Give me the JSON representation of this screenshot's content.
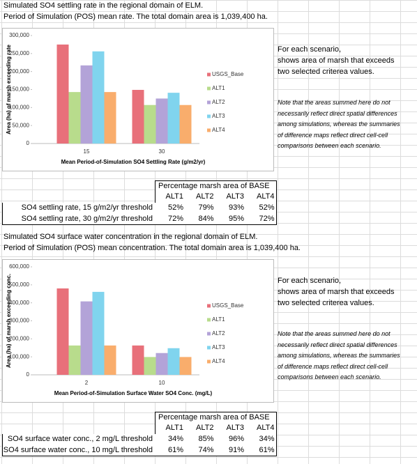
{
  "headers": [
    [
      "Simulated SO4 settling rate in the regional domain of ELM.",
      "Period of Simulation (POS) mean rate. The total domain area is 1,039,400 ha."
    ],
    [
      "Simulated SO4 surface water concentration in the regional domain of ELM.",
      "Period of Simulation (POS) mean concentration. The total domain area is 1,039,400 ha."
    ]
  ],
  "notes": [
    {
      "summary": [
        "For each scenario,",
        "shows area of marsh that exceeds",
        "two selected criterea values."
      ],
      "caveat": [
        "Note that the areas summed here do not",
        "necessarily reflect direct spatial differences",
        "among simulations, whereas the summaries",
        "of difference maps reflect direct cell-cell",
        "comparisons between each scenario."
      ]
    },
    {
      "summary": [
        "For each scenario,",
        "shows area of marsh that exceeds",
        "two selected criterea values."
      ],
      "caveat": [
        "Note that the areas summed here do not",
        "necessarily reflect direct spatial differences",
        "among simulations, whereas the summaries",
        "of difference maps reflect direct cell-cell",
        "comparisons between each scenario."
      ]
    }
  ],
  "tables": [
    {
      "title": "Percentage marsh area of BASE",
      "columns": [
        "ALT1",
        "ALT2",
        "ALT3",
        "ALT4"
      ],
      "rows": [
        {
          "label": "SO4 settling rate, 15 g/m2/yr threshold",
          "cells": [
            "52%",
            "79%",
            "93%",
            "52%"
          ]
        },
        {
          "label": "SO4 settling rate, 30 g/m2/yr threshold",
          "cells": [
            "72%",
            "84%",
            "95%",
            "72%"
          ]
        }
      ]
    },
    {
      "title": "Percentage marsh area of BASE",
      "columns": [
        "ALT1",
        "ALT2",
        "ALT3",
        "ALT4"
      ],
      "rows": [
        {
          "label": "SO4 surface water conc., 2 mg/L threshold",
          "cells": [
            "34%",
            "85%",
            "96%",
            "34%"
          ]
        },
        {
          "label": "SO4 surface water conc., 10 mg/L threshold",
          "cells": [
            "61%",
            "74%",
            "91%",
            "61%"
          ]
        }
      ]
    }
  ],
  "chart_data": [
    {
      "type": "bar",
      "xlabel": "Mean Period-of-Simulation SO4 Settling Rate (g/m2/yr)",
      "ylabel": "Area (ha) of marsh exceeding rate",
      "categories": [
        "15",
        "30"
      ],
      "series": [
        {
          "name": "USGS_Base",
          "color": "#e8707a",
          "values": [
            275000,
            149000
          ]
        },
        {
          "name": "ALT1",
          "color": "#b8dc8c",
          "values": [
            143000,
            107000
          ]
        },
        {
          "name": "ALT2",
          "color": "#b3a3d8",
          "values": [
            217000,
            125000
          ]
        },
        {
          "name": "ALT3",
          "color": "#80d4ee",
          "values": [
            256000,
            141000
          ]
        },
        {
          "name": "ALT4",
          "color": "#f9ad6c",
          "values": [
            143000,
            107000
          ]
        }
      ],
      "ylim": [
        0,
        300000
      ],
      "yticks": [
        0,
        {
          "value": 50000,
          "label": "50,000"
        },
        {
          "value": 100000,
          "label": "100,000"
        },
        {
          "value": 150000,
          "label": "150,000"
        },
        {
          "value": 200000,
          "label": "200,000"
        },
        {
          "value": 250000,
          "label": "250,000"
        },
        {
          "value": 300000,
          "label": "300,000"
        }
      ],
      "grid": false,
      "legend": "right"
    },
    {
      "type": "bar",
      "xlabel": "Mean Period-of-Simulation Surface Water SO4 Conc. (mg/L)",
      "ylabel": "Area (ha) of marsh exceeding conc.",
      "categories": [
        "2",
        "10"
      ],
      "series": [
        {
          "name": "USGS_Base",
          "color": "#e8707a",
          "values": [
            480000,
            163000
          ]
        },
        {
          "name": "ALT1",
          "color": "#b8dc8c",
          "values": [
            163000,
            99000
          ]
        },
        {
          "name": "ALT2",
          "color": "#b3a3d8",
          "values": [
            408000,
            121000
          ]
        },
        {
          "name": "ALT3",
          "color": "#80d4ee",
          "values": [
            461000,
            148000
          ]
        },
        {
          "name": "ALT4",
          "color": "#f9ad6c",
          "values": [
            163000,
            99000
          ]
        }
      ],
      "ylim": [
        0,
        600000
      ],
      "yticks": [
        0,
        {
          "value": 100000,
          "label": "100,000"
        },
        {
          "value": 200000,
          "label": "200,000"
        },
        {
          "value": 300000,
          "label": "300,000"
        },
        {
          "value": 400000,
          "label": "400,000"
        },
        {
          "value": 500000,
          "label": "500,000"
        },
        {
          "value": 600000,
          "label": "600,000"
        }
      ],
      "grid": false,
      "legend": "right"
    }
  ]
}
